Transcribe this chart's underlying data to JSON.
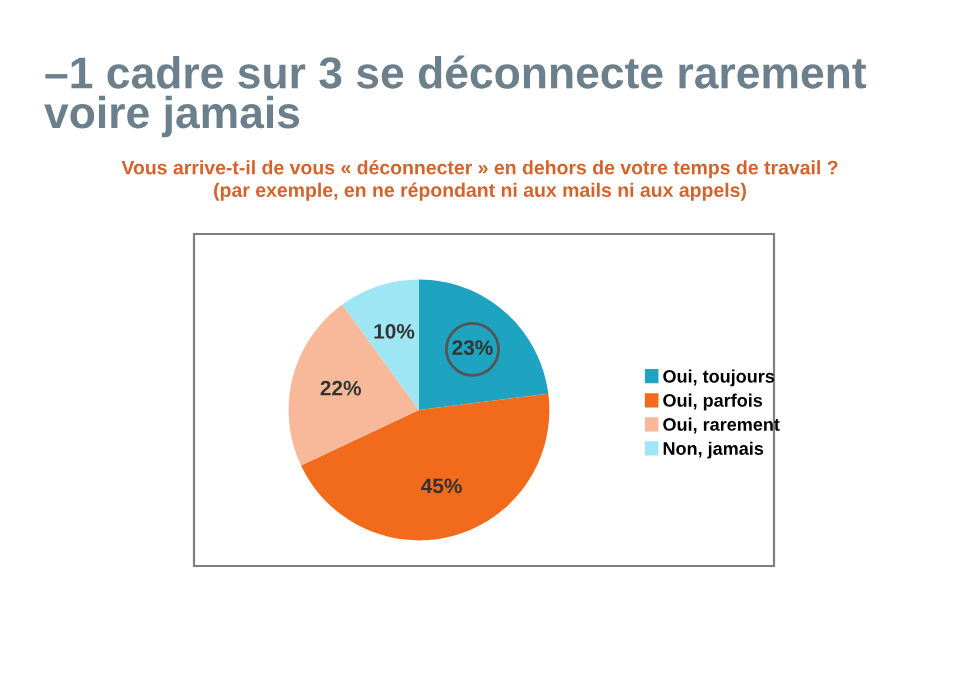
{
  "chart_data": {
    "type": "pie",
    "title": "–1 cadre sur 3 se déconnecte rarement\nvoire jamais",
    "subtitle": "Vous arrive-t-il de vous « déconnecter » en dehors de votre temps de travail ?\n(par exemple, en ne répondant ni aux mails ni aux appels)",
    "categories": [
      "Oui, toujours",
      "Oui, parfois",
      "Oui, rarement",
      "Non, jamais"
    ],
    "values": [
      23,
      45,
      22,
      10
    ],
    "colors": [
      "#1ea3c0",
      "#f26b1d",
      "#f7b99a",
      "#9fe6f5"
    ],
    "value_labels": [
      "23%",
      "45%",
      "22%",
      "10%"
    ],
    "legend": "right"
  }
}
